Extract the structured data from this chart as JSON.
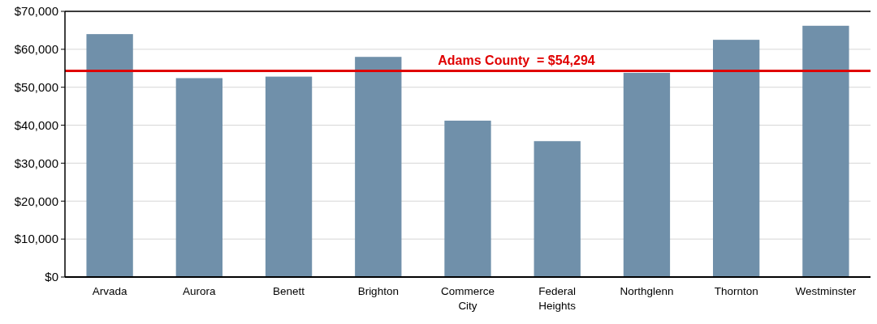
{
  "chart_data": {
    "type": "bar",
    "categories": [
      "Arvada",
      "Aurora",
      "Benett",
      "Brighton",
      "Commerce City",
      "Federal Heights",
      "Northglenn",
      "Thornton",
      "Westminster"
    ],
    "values": [
      64000,
      52400,
      52800,
      58000,
      41200,
      35800,
      53800,
      62500,
      66200
    ],
    "color": "#7090aa",
    "ylim": [
      0,
      70000
    ],
    "yticks": [
      {
        "value": 0,
        "label": "$0"
      },
      {
        "value": 10000,
        "label": "$10,000"
      },
      {
        "value": 20000,
        "label": "$20,000"
      },
      {
        "value": 30000,
        "label": "$30,000"
      },
      {
        "value": 40000,
        "label": "$40,000"
      },
      {
        "value": 50000,
        "label": "$50,000"
      },
      {
        "value": 60000,
        "label": "$60,000"
      },
      {
        "value": 70000,
        "label": "$70,000"
      }
    ],
    "grid": "y",
    "ref_lines": [
      {
        "axis": "y",
        "value": 54294,
        "label": "Adams County  = $54,294",
        "color": "#e00000"
      }
    ]
  }
}
